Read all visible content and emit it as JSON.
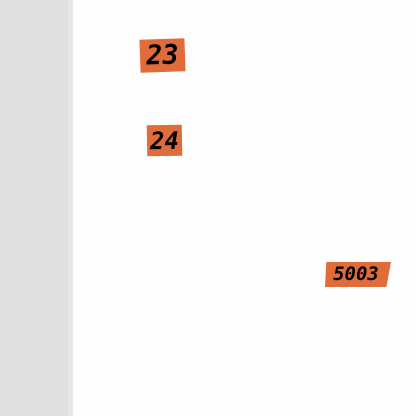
{
  "theme": {
    "tag_color": "#e06c3a",
    "side_panel_color": "#e0e0e0",
    "canvas_color": "#fefefe"
  },
  "labels": [
    {
      "text": "23"
    },
    {
      "text": "24"
    },
    {
      "text": "5003"
    }
  ]
}
